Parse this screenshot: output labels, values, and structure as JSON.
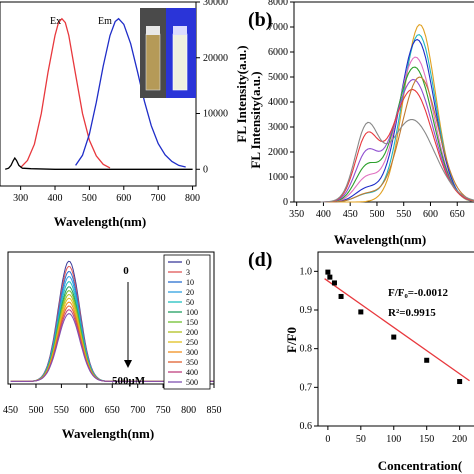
{
  "chart_data": [
    {
      "panel": "a",
      "type": "line",
      "xlabel": "Wavelength(nm)",
      "ylabel": "FL Intensity(a.u.)",
      "xlim": [
        240,
        810
      ],
      "x_ticks": [
        300,
        400,
        500,
        600,
        700,
        800
      ],
      "ylim": [
        -3000,
        30000
      ],
      "y_ticks": [
        0,
        10000,
        20000,
        30000
      ],
      "series": [
        {
          "name": "Ex",
          "color": "#e8383d",
          "x": [
            300,
            320,
            340,
            360,
            380,
            400,
            410,
            420,
            430,
            440,
            460,
            480,
            500,
            520,
            540,
            560
          ],
          "y": [
            300,
            1600,
            4500,
            10000,
            17500,
            24000,
            26300,
            27000,
            26300,
            24000,
            17000,
            10000,
            5200,
            2400,
            900,
            250
          ]
        },
        {
          "name": "Em",
          "color": "#1f2dc8",
          "x": [
            460,
            480,
            500,
            520,
            540,
            560,
            575,
            585,
            600,
            620,
            640,
            660,
            680,
            700,
            720,
            740,
            760,
            780
          ],
          "y": [
            700,
            2500,
            6300,
            12000,
            18500,
            24000,
            26500,
            27000,
            26000,
            22500,
            17500,
            12200,
            7800,
            4600,
            2600,
            1400,
            700,
            400
          ]
        },
        {
          "name": "",
          "color": "#000000",
          "x": [
            255,
            265,
            272,
            278,
            283,
            288,
            295,
            305,
            330,
            400,
            500,
            600,
            700,
            800
          ],
          "y": [
            0,
            200,
            700,
            1500,
            2000,
            1600,
            700,
            200,
            100,
            0,
            0,
            0,
            0,
            0
          ]
        }
      ],
      "labels": {
        "ex": "Ex",
        "em": "Em"
      }
    },
    {
      "panel": "b",
      "type": "line",
      "xlabel": "Wavelength(nm)",
      "ylabel": "FL Intensity(a.u.)",
      "xlim": [
        345,
        700
      ],
      "x_ticks": [
        350,
        400,
        450,
        500,
        550,
        600,
        650
      ],
      "ylim": [
        0,
        8000
      ],
      "y_ticks": [
        0,
        1000,
        2000,
        3000,
        4000,
        5000,
        6000,
        7000,
        8000
      ],
      "series": [
        {
          "color": "#e0a020",
          "center": 580,
          "width": 42,
          "peak": 7100,
          "shoulder": 0
        },
        {
          "color": "#20b5c0",
          "center": 578,
          "width": 44,
          "peak": 6700,
          "shoulder": 300
        },
        {
          "color": "#1f2dc8",
          "center": 575,
          "width": 46,
          "peak": 6500,
          "shoulder": 500
        },
        {
          "color": "#e070c0",
          "center": 572,
          "width": 48,
          "peak": 5800,
          "shoulder": 900
        },
        {
          "color": "#2ca02c",
          "center": 570,
          "width": 50,
          "peak": 5400,
          "shoulder": 1300
        },
        {
          "color": "#8f4fd0",
          "center": 568,
          "width": 52,
          "peak": 4900,
          "shoulder": 1800
        },
        {
          "color": "#e8383d",
          "center": 566,
          "width": 54,
          "peak": 4500,
          "shoulder": 2400
        },
        {
          "color": "#c07830",
          "center": 580,
          "width": 48,
          "peak": 5000,
          "shoulder": 300
        },
        {
          "color": "#888888",
          "center": 565,
          "width": 60,
          "peak": 3300,
          "shoulder": 2700
        }
      ]
    },
    {
      "panel": "c",
      "type": "line",
      "xlabel": "Wavelength(nm)",
      "xlim": [
        445,
        850
      ],
      "x_ticks": [
        450,
        500,
        550,
        600,
        650,
        700,
        750,
        800,
        850
      ],
      "ylim": [
        0,
        1
      ],
      "center": 565,
      "width": 30,
      "series": [
        {
          "name": "0",
          "color": "#3b3b9a",
          "peak": 0.94
        },
        {
          "name": "3",
          "color": "#e05858",
          "peak": 0.9
        },
        {
          "name": "10",
          "color": "#2a6fd0",
          "peak": 0.86
        },
        {
          "name": "20",
          "color": "#30a0e0",
          "peak": 0.82
        },
        {
          "name": "50",
          "color": "#20c0c0",
          "peak": 0.78
        },
        {
          "name": "100",
          "color": "#1f9f60",
          "peak": 0.74
        },
        {
          "name": "150",
          "color": "#70c030",
          "peak": 0.71
        },
        {
          "name": "200",
          "color": "#b0c020",
          "peak": 0.68
        },
        {
          "name": "250",
          "color": "#e0c020",
          "peak": 0.65
        },
        {
          "name": "300",
          "color": "#f09020",
          "peak": 0.62
        },
        {
          "name": "350",
          "color": "#e06030",
          "peak": 0.59
        },
        {
          "name": "400",
          "color": "#c04080",
          "peak": 0.56
        },
        {
          "name": "500",
          "color": "#8050b0",
          "peak": 0.53
        }
      ],
      "annotations": {
        "top": "0",
        "bottom": "500μM"
      },
      "legend": "right"
    },
    {
      "panel": "d",
      "type": "scatter",
      "xlabel": "Concentration(",
      "ylabel": "F/F0",
      "xlim": [
        -15,
        240
      ],
      "x_ticks": [
        0,
        50,
        100,
        150,
        200
      ],
      "ylim": [
        0.6,
        1.05
      ],
      "y_ticks": [
        0.6,
        0.7,
        0.8,
        0.9,
        1.0
      ],
      "points": {
        "x": [
          0,
          3,
          10,
          20,
          50,
          100,
          150,
          200
        ],
        "y": [
          0.998,
          0.985,
          0.97,
          0.935,
          0.895,
          0.83,
          0.77,
          0.715
        ]
      },
      "fit": {
        "slope": -0.0012,
        "intercept": 0.975,
        "color": "#e8383d"
      },
      "equation": "F/F₀=-0.0012",
      "r2": "R²=0.9915"
    }
  ],
  "panel_labels": {
    "b": "(b)",
    "d": "(d)"
  },
  "photo": {
    "panel_color": "#2a34d8",
    "vial_left_color": "#b59a58",
    "vial_right_color": "#f0f0e0"
  }
}
